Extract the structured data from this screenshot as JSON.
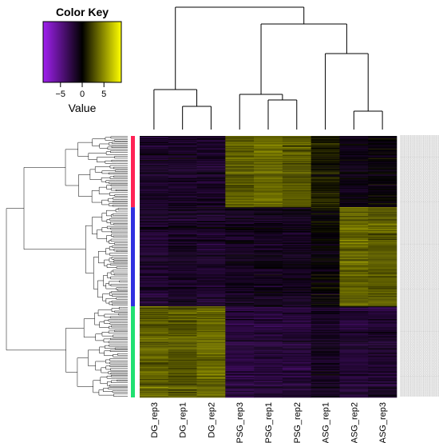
{
  "chart_data": {
    "type": "heatmap",
    "title": "",
    "columns": [
      "DG_rep3",
      "DG_rep1",
      "DG_rep2",
      "PSG_rep3",
      "PSG_rep1",
      "PSG_rep2",
      "ASG_rep1",
      "ASG_rep2",
      "ASG_rep3"
    ],
    "color_key": {
      "title": "Color Key",
      "xlabel": "Value",
      "range": [
        -9,
        9
      ],
      "ticks": [
        -5,
        0,
        5
      ],
      "colors": {
        "low": "#a020f0",
        "mid": "#000000",
        "high": "#ffff00"
      }
    },
    "row_clusters": [
      {
        "color": "#ff2255",
        "n_rows": 90
      },
      {
        "color": "#3030e0",
        "n_rows": 125
      },
      {
        "color": "#20e070",
        "n_rows": 115
      }
    ],
    "cluster_block_means": [
      [
        -1.5,
        -1.5,
        -1.5,
        3.2,
        3.6,
        3.0,
        0.9,
        -0.8,
        -0.4
      ],
      [
        -1.7,
        -1.4,
        -1.6,
        -1.0,
        -0.9,
        -1.0,
        -0.1,
        3.6,
        3.2
      ],
      [
        3.4,
        3.0,
        3.8,
        -2.2,
        -2.1,
        -2.0,
        -1.2,
        -1.9,
        -1.6
      ]
    ],
    "row_labels_visible": false
  }
}
